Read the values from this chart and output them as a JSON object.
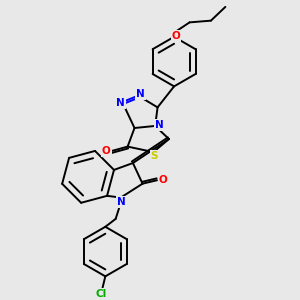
{
  "bg": "#e8e8e8",
  "C": "#000000",
  "N": "#0000ff",
  "O": "#ff0000",
  "S": "#cccc00",
  "Cl": "#00aa00",
  "lw": 1.4,
  "dbo": 0.06
}
